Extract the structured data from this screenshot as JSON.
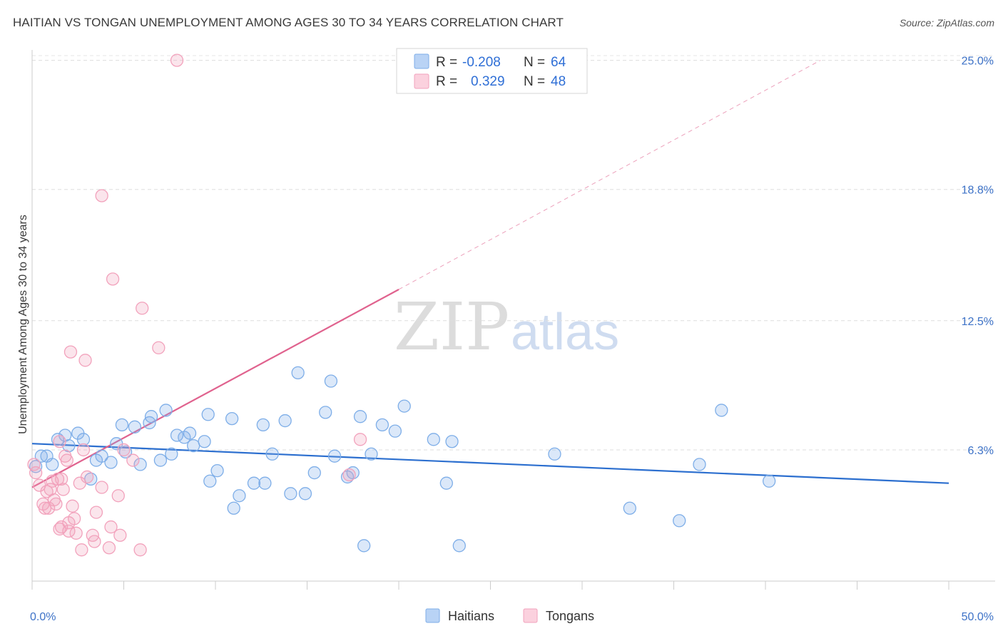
{
  "title": "HAITIAN VS TONGAN UNEMPLOYMENT AMONG AGES 30 TO 34 YEARS CORRELATION CHART",
  "source": "Source: ZipAtlas.com",
  "watermark": {
    "zip": "ZIP",
    "atlas": "atlas"
  },
  "colors": {
    "haitians": "#7eaee8",
    "haitians_line": "#2c6fcf",
    "tongans": "#f2a2bc",
    "tongans_line": "#e0628e",
    "tick_text": "#3d72c7"
  },
  "legend": {
    "haitians": {
      "r_label": "R =",
      "r_value": "-0.208",
      "n_label": "N =",
      "n_value": "64"
    },
    "tongans": {
      "r_label": "R =",
      "r_value": "0.329",
      "n_label": "N =",
      "n_value": "48"
    }
  },
  "chart_data": {
    "type": "scatter",
    "title": "HAITIAN VS TONGAN UNEMPLOYMENT AMONG AGES 30 TO 34 YEARS CORRELATION CHART",
    "xlabel": "",
    "ylabel": "Unemployment Among Ages 30 to 34 years",
    "xlim": [
      0,
      50
    ],
    "ylim": [
      0,
      25.5
    ],
    "x_tick_labels": [
      "0.0%",
      "50.0%"
    ],
    "y_ticks": [
      {
        "value": 6.3,
        "label": "6.3%"
      },
      {
        "value": 12.5,
        "label": "12.5%"
      },
      {
        "value": 18.8,
        "label": "18.8%"
      },
      {
        "value": 25.0,
        "label": "25.0%"
      }
    ],
    "legend_bottom": [
      "Haitians",
      "Tongans"
    ],
    "series": [
      {
        "name": "Haitians",
        "trend": {
          "x": [
            0,
            50
          ],
          "y": [
            6.6,
            4.7
          ],
          "dashed_extension": false
        },
        "points": [
          [
            0.2,
            5.5
          ],
          [
            0.5,
            6.0
          ],
          [
            0.8,
            6.0
          ],
          [
            1.1,
            5.6
          ],
          [
            1.4,
            6.8
          ],
          [
            1.8,
            7.0
          ],
          [
            2.0,
            6.5
          ],
          [
            2.5,
            7.1
          ],
          [
            2.8,
            6.8
          ],
          [
            3.2,
            4.9
          ],
          [
            3.5,
            5.8
          ],
          [
            3.8,
            6.0
          ],
          [
            4.3,
            5.7
          ],
          [
            4.6,
            6.6
          ],
          [
            4.9,
            7.5
          ],
          [
            5.1,
            6.2
          ],
          [
            5.6,
            7.4
          ],
          [
            5.9,
            5.6
          ],
          [
            6.4,
            7.6
          ],
          [
            6.5,
            7.9
          ],
          [
            7.0,
            5.8
          ],
          [
            7.3,
            8.2
          ],
          [
            7.6,
            6.1
          ],
          [
            7.9,
            7.0
          ],
          [
            8.3,
            6.9
          ],
          [
            8.6,
            7.1
          ],
          [
            8.8,
            6.5
          ],
          [
            9.4,
            6.7
          ],
          [
            9.6,
            8.0
          ],
          [
            9.7,
            4.8
          ],
          [
            10.1,
            5.3
          ],
          [
            10.9,
            7.8
          ],
          [
            11.0,
            3.5
          ],
          [
            11.3,
            4.1
          ],
          [
            12.1,
            4.7
          ],
          [
            12.6,
            7.5
          ],
          [
            12.7,
            4.7
          ],
          [
            13.1,
            6.1
          ],
          [
            13.8,
            7.7
          ],
          [
            14.1,
            4.2
          ],
          [
            14.5,
            10.0
          ],
          [
            14.9,
            4.2
          ],
          [
            15.4,
            5.2
          ],
          [
            16.0,
            8.1
          ],
          [
            16.3,
            9.6
          ],
          [
            16.5,
            6.0
          ],
          [
            17.2,
            5.0
          ],
          [
            17.5,
            5.2
          ],
          [
            17.9,
            7.9
          ],
          [
            18.1,
            1.7
          ],
          [
            18.5,
            6.1
          ],
          [
            19.1,
            7.5
          ],
          [
            19.8,
            7.2
          ],
          [
            20.3,
            8.4
          ],
          [
            21.9,
            6.8
          ],
          [
            22.6,
            4.7
          ],
          [
            22.9,
            6.7
          ],
          [
            23.3,
            1.7
          ],
          [
            28.5,
            6.1
          ],
          [
            32.6,
            3.5
          ],
          [
            35.3,
            2.9
          ],
          [
            36.4,
            5.6
          ],
          [
            37.6,
            8.2
          ],
          [
            40.2,
            4.8
          ]
        ]
      },
      {
        "name": "Tongans",
        "trend": {
          "x": [
            0,
            20
          ],
          "y": [
            4.5,
            14.0
          ],
          "dashed_to": [
            43,
            25.0
          ]
        },
        "points": [
          [
            0.1,
            5.6
          ],
          [
            0.2,
            5.2
          ],
          [
            0.4,
            4.6
          ],
          [
            0.6,
            3.7
          ],
          [
            0.7,
            3.5
          ],
          [
            0.8,
            4.3
          ],
          [
            0.9,
            3.5
          ],
          [
            1.0,
            4.4
          ],
          [
            1.1,
            4.8
          ],
          [
            1.2,
            3.9
          ],
          [
            1.3,
            3.7
          ],
          [
            1.4,
            4.9
          ],
          [
            1.5,
            6.7
          ],
          [
            1.6,
            4.9
          ],
          [
            1.6,
            2.6
          ],
          [
            1.7,
            4.4
          ],
          [
            1.8,
            6.0
          ],
          [
            1.9,
            5.8
          ],
          [
            2.0,
            2.4
          ],
          [
            2.0,
            2.8
          ],
          [
            2.1,
            11.0
          ],
          [
            2.2,
            3.6
          ],
          [
            2.3,
            3.0
          ],
          [
            2.4,
            2.3
          ],
          [
            2.6,
            4.7
          ],
          [
            2.7,
            1.5
          ],
          [
            2.8,
            6.3
          ],
          [
            2.9,
            10.6
          ],
          [
            3.3,
            2.2
          ],
          [
            3.4,
            1.9
          ],
          [
            3.5,
            3.3
          ],
          [
            3.8,
            4.5
          ],
          [
            3.8,
            18.5
          ],
          [
            4.2,
            1.6
          ],
          [
            4.3,
            2.6
          ],
          [
            4.4,
            14.5
          ],
          [
            4.7,
            4.1
          ],
          [
            4.8,
            2.2
          ],
          [
            5.0,
            6.3
          ],
          [
            5.9,
            1.5
          ],
          [
            6.0,
            13.1
          ],
          [
            6.9,
            11.2
          ],
          [
            7.9,
            25.0
          ],
          [
            17.9,
            6.8
          ],
          [
            17.3,
            5.1
          ],
          [
            5.5,
            5.8
          ],
          [
            3.0,
            5.0
          ],
          [
            1.5,
            2.5
          ]
        ]
      }
    ]
  }
}
